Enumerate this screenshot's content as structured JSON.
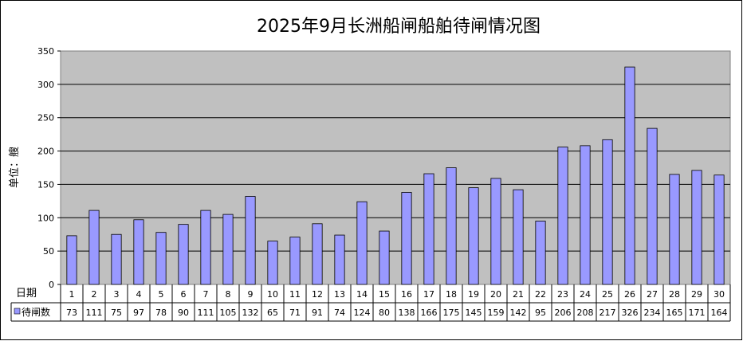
{
  "chart_data": {
    "type": "bar",
    "title": "2025年9月长洲船闸船舶待闸情况图",
    "ylabel": "单位：艘",
    "xlabel": "日期",
    "ylim": [
      0,
      350
    ],
    "yticks": [
      0,
      50,
      100,
      150,
      200,
      250,
      300,
      350
    ],
    "grid": true,
    "categories": [
      "1",
      "2",
      "3",
      "4",
      "5",
      "6",
      "7",
      "8",
      "9",
      "10",
      "11",
      "12",
      "13",
      "14",
      "15",
      "16",
      "17",
      "18",
      "19",
      "20",
      "21",
      "22",
      "23",
      "24",
      "25",
      "26",
      "27",
      "28",
      "29",
      "30"
    ],
    "series": [
      {
        "name": "待闸数",
        "color": "#9999ff",
        "values": [
          73,
          111,
          75,
          97,
          78,
          90,
          111,
          105,
          132,
          65,
          71,
          91,
          74,
          124,
          80,
          138,
          166,
          175,
          145,
          159,
          142,
          95,
          206,
          208,
          217,
          326,
          234,
          165,
          171,
          164
        ]
      }
    ],
    "legend": "data-table-left"
  }
}
